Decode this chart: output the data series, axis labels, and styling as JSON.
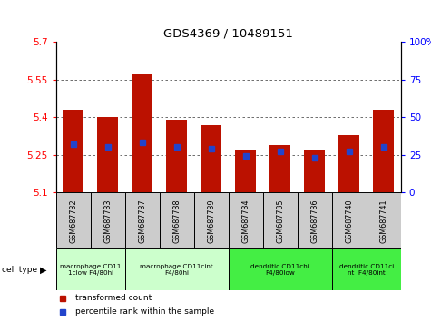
{
  "title": "GDS4369 / 10489151",
  "samples": [
    "GSM687732",
    "GSM687733",
    "GSM687737",
    "GSM687738",
    "GSM687739",
    "GSM687734",
    "GSM687735",
    "GSM687736",
    "GSM687740",
    "GSM687741"
  ],
  "transformed_count": [
    5.43,
    5.4,
    5.57,
    5.39,
    5.37,
    5.27,
    5.29,
    5.27,
    5.33,
    5.43
  ],
  "percentile_rank": [
    32,
    30,
    33,
    30,
    29,
    24,
    27,
    23,
    27,
    30
  ],
  "ylim": [
    5.1,
    5.7
  ],
  "yticks_left": [
    5.1,
    5.25,
    5.4,
    5.55,
    5.7
  ],
  "yticks_right": [
    0,
    25,
    50,
    75,
    100
  ],
  "bar_bottom": 5.1,
  "bar_color": "#bb1100",
  "percentile_color": "#2244cc",
  "grid_color": "#555555",
  "cell_type_groups": [
    {
      "label": "macrophage CD11\n1clow F4/80hi",
      "start": 0,
      "end": 2,
      "color": "#ccffcc"
    },
    {
      "label": "macrophage CD11cint\nF4/80hi",
      "start": 2,
      "end": 5,
      "color": "#ccffcc"
    },
    {
      "label": "dendritic CD11chi\nF4/80low",
      "start": 5,
      "end": 8,
      "color": "#44ee44"
    },
    {
      "label": "dendritic CD11ci\nnt  F4/80int",
      "start": 8,
      "end": 10,
      "color": "#44ee44"
    }
  ],
  "legend_items": [
    {
      "label": "transformed count",
      "color": "#bb1100"
    },
    {
      "label": "percentile rank within the sample",
      "color": "#2244cc"
    }
  ],
  "bar_width": 0.6,
  "sample_box_color": "#cccccc",
  "fig_bg": "#ffffff"
}
